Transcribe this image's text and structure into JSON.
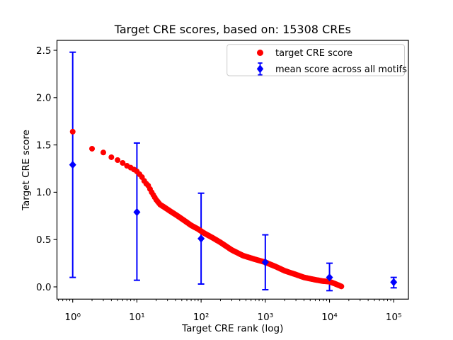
{
  "figure": {
    "background": "#ffffff",
    "frame_color": "#000000"
  },
  "chart_data": {
    "type": "scatter",
    "title": "Target CRE scores, based on: 15308 CREs",
    "xlabel": "Target CRE rank (log)",
    "ylabel": "Target CRE score",
    "x_scale": "log",
    "grid": false,
    "n_points_total": 15308,
    "xlim_log10": [
      -0.245,
      5.229
    ],
    "ylim": [
      -0.1295,
      2.605
    ],
    "x_tick_values": [
      1,
      10,
      100,
      1000,
      10000,
      100000
    ],
    "x_tick_labels": [
      "10⁰",
      "10¹",
      "10²",
      "10³",
      "10⁴",
      "10⁵"
    ],
    "y_tick_values": [
      0.0,
      0.5,
      1.0,
      1.5,
      2.0,
      2.5
    ],
    "y_tick_labels": [
      "0.0",
      "0.5",
      "1.0",
      "1.5",
      "2.0",
      "2.5"
    ],
    "legend": {
      "position": "upper right",
      "entries": [
        {
          "label": "target CRE score",
          "marker": "circle",
          "color": "#ff0000"
        },
        {
          "label": "mean score across all motifs",
          "marker": "diamond-errorbar",
          "color": "#0000ff"
        }
      ]
    },
    "series": [
      {
        "name": "target CRE score",
        "type": "scatter",
        "marker": "circle",
        "color": "#ff0000",
        "points_sampled_rank_score": [
          [
            1,
            1.64
          ],
          [
            2,
            1.46
          ],
          [
            3,
            1.42
          ],
          [
            4,
            1.37
          ],
          [
            5,
            1.34
          ],
          [
            6,
            1.31
          ],
          [
            7,
            1.28
          ],
          [
            8,
            1.26
          ],
          [
            9,
            1.24
          ],
          [
            10,
            1.22
          ],
          [
            11,
            1.19
          ],
          [
            12,
            1.16
          ],
          [
            13,
            1.12
          ],
          [
            14,
            1.09
          ],
          [
            15,
            1.07
          ],
          [
            17,
            1.0
          ],
          [
            20,
            0.92
          ],
          [
            23,
            0.87
          ],
          [
            27,
            0.84
          ],
          [
            33,
            0.8
          ],
          [
            43,
            0.75
          ],
          [
            55,
            0.7
          ],
          [
            70,
            0.65
          ],
          [
            90,
            0.61
          ],
          [
            110,
            0.57
          ],
          [
            150,
            0.52
          ],
          [
            200,
            0.47
          ],
          [
            300,
            0.39
          ],
          [
            450,
            0.33
          ],
          [
            700,
            0.29
          ],
          [
            1000,
            0.26
          ],
          [
            1500,
            0.21
          ],
          [
            2000,
            0.17
          ],
          [
            3000,
            0.13
          ],
          [
            4000,
            0.1
          ],
          [
            6000,
            0.075
          ],
          [
            8000,
            0.06
          ],
          [
            10000,
            0.055
          ],
          [
            12000,
            0.035
          ],
          [
            15308,
            0.005
          ]
        ]
      },
      {
        "name": "mean score across all motifs",
        "type": "errorbar",
        "marker": "diamond",
        "color": "#0000ff",
        "points": [
          {
            "x": 1,
            "mean": 1.29,
            "lo": 0.1,
            "hi": 2.48
          },
          {
            "x": 10,
            "mean": 0.79,
            "lo": 0.07,
            "hi": 1.52
          },
          {
            "x": 100,
            "mean": 0.51,
            "lo": 0.03,
            "hi": 0.99
          },
          {
            "x": 1000,
            "mean": 0.26,
            "lo": -0.03,
            "hi": 0.55
          },
          {
            "x": 10000,
            "mean": 0.1,
            "lo": -0.04,
            "hi": 0.25
          },
          {
            "x": 100000,
            "mean": 0.05,
            "lo": -0.01,
            "hi": 0.1
          }
        ]
      }
    ]
  }
}
